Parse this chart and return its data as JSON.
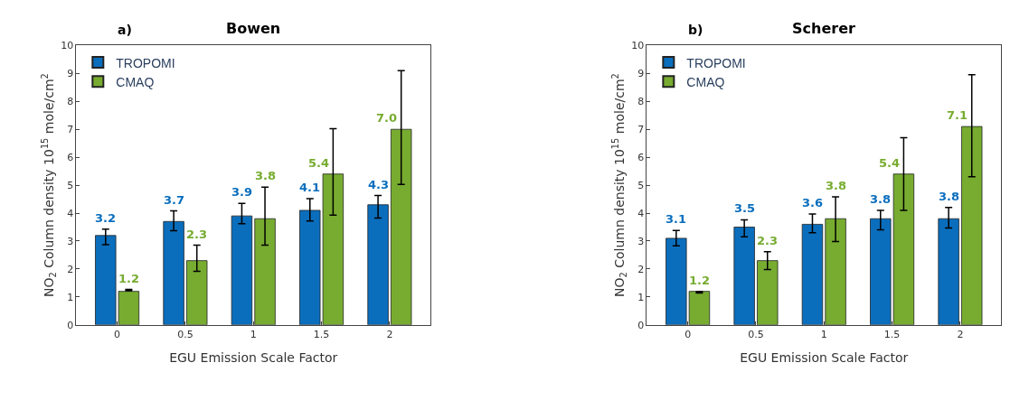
{
  "chart_data": [
    {
      "type": "bar",
      "title": "Bowen",
      "annotations": [
        "a)"
      ],
      "xlabel": "EGU Emission Scale Factor",
      "ylabel": "NO$_{2}$ Column density 10$^{15}$ mole/cm$^{2}$",
      "categories": [
        "0",
        "0.5",
        "1",
        "1.5",
        "2"
      ],
      "ylim": [
        0,
        10
      ],
      "yticks": [
        0,
        1,
        2,
        3,
        4,
        5,
        6,
        7,
        8,
        9,
        10
      ],
      "grid": false,
      "legend": "top left",
      "series": [
        {
          "name": "TROPOMI",
          "color": "#0a6ebd",
          "values": [
            3.2,
            3.7,
            3.9,
            4.1,
            4.3
          ],
          "errors": [
            [
              2.87,
              3.43
            ],
            [
              3.37,
              4.08
            ],
            [
              3.62,
              4.35
            ],
            [
              3.72,
              4.52
            ],
            [
              3.82,
              4.63
            ]
          ],
          "value_labels": [
            "3.2",
            "3.7",
            "3.9",
            "4.1",
            "4.3"
          ]
        },
        {
          "name": "CMAQ",
          "color": "#77ac30",
          "values": [
            1.2,
            2.3,
            3.8,
            5.4,
            7.0
          ],
          "errors": [
            [
              1.22,
              1.27
            ],
            [
              1.92,
              2.85
            ],
            [
              2.85,
              4.93
            ],
            [
              3.93,
              7.02
            ],
            [
              5.03,
              9.1
            ]
          ],
          "value_labels": [
            "1.2",
            "2.3",
            "3.8",
            "5.4",
            "7.0"
          ]
        }
      ]
    },
    {
      "type": "bar",
      "title": "Scherer",
      "annotations": [
        "b)"
      ],
      "xlabel": "EGU Emission Scale Factor",
      "ylabel": "NO$_{2}$ Column density 10$^{15}$ mole/cm$^{2}$",
      "categories": [
        "0",
        "0.5",
        "1",
        "1.5",
        "2"
      ],
      "ylim": [
        0,
        10
      ],
      "yticks": [
        0,
        1,
        2,
        3,
        4,
        5,
        6,
        7,
        8,
        9,
        10
      ],
      "grid": false,
      "legend": "top left",
      "series": [
        {
          "name": "TROPOMI",
          "color": "#0a6ebd",
          "values": [
            3.1,
            3.5,
            3.6,
            3.8,
            3.8
          ],
          "errors": [
            [
              2.83,
              3.38
            ],
            [
              3.15,
              3.76
            ],
            [
              3.3,
              3.97
            ],
            [
              3.4,
              4.1
            ],
            [
              3.47,
              4.2
            ]
          ],
          "value_labels": [
            "3.1",
            "3.5",
            "3.6",
            "3.8",
            "3.8"
          ]
        },
        {
          "name": "CMAQ",
          "color": "#77ac30",
          "values": [
            1.2,
            2.3,
            3.8,
            5.4,
            7.1
          ],
          "errors": [
            [
              1.14,
              1.19
            ],
            [
              1.98,
              2.62
            ],
            [
              2.98,
              4.58
            ],
            [
              4.1,
              6.7
            ],
            [
              5.3,
              8.95
            ]
          ],
          "value_labels": [
            "1.2",
            "2.3",
            "3.8",
            "5.4",
            "7.1"
          ]
        }
      ]
    }
  ]
}
